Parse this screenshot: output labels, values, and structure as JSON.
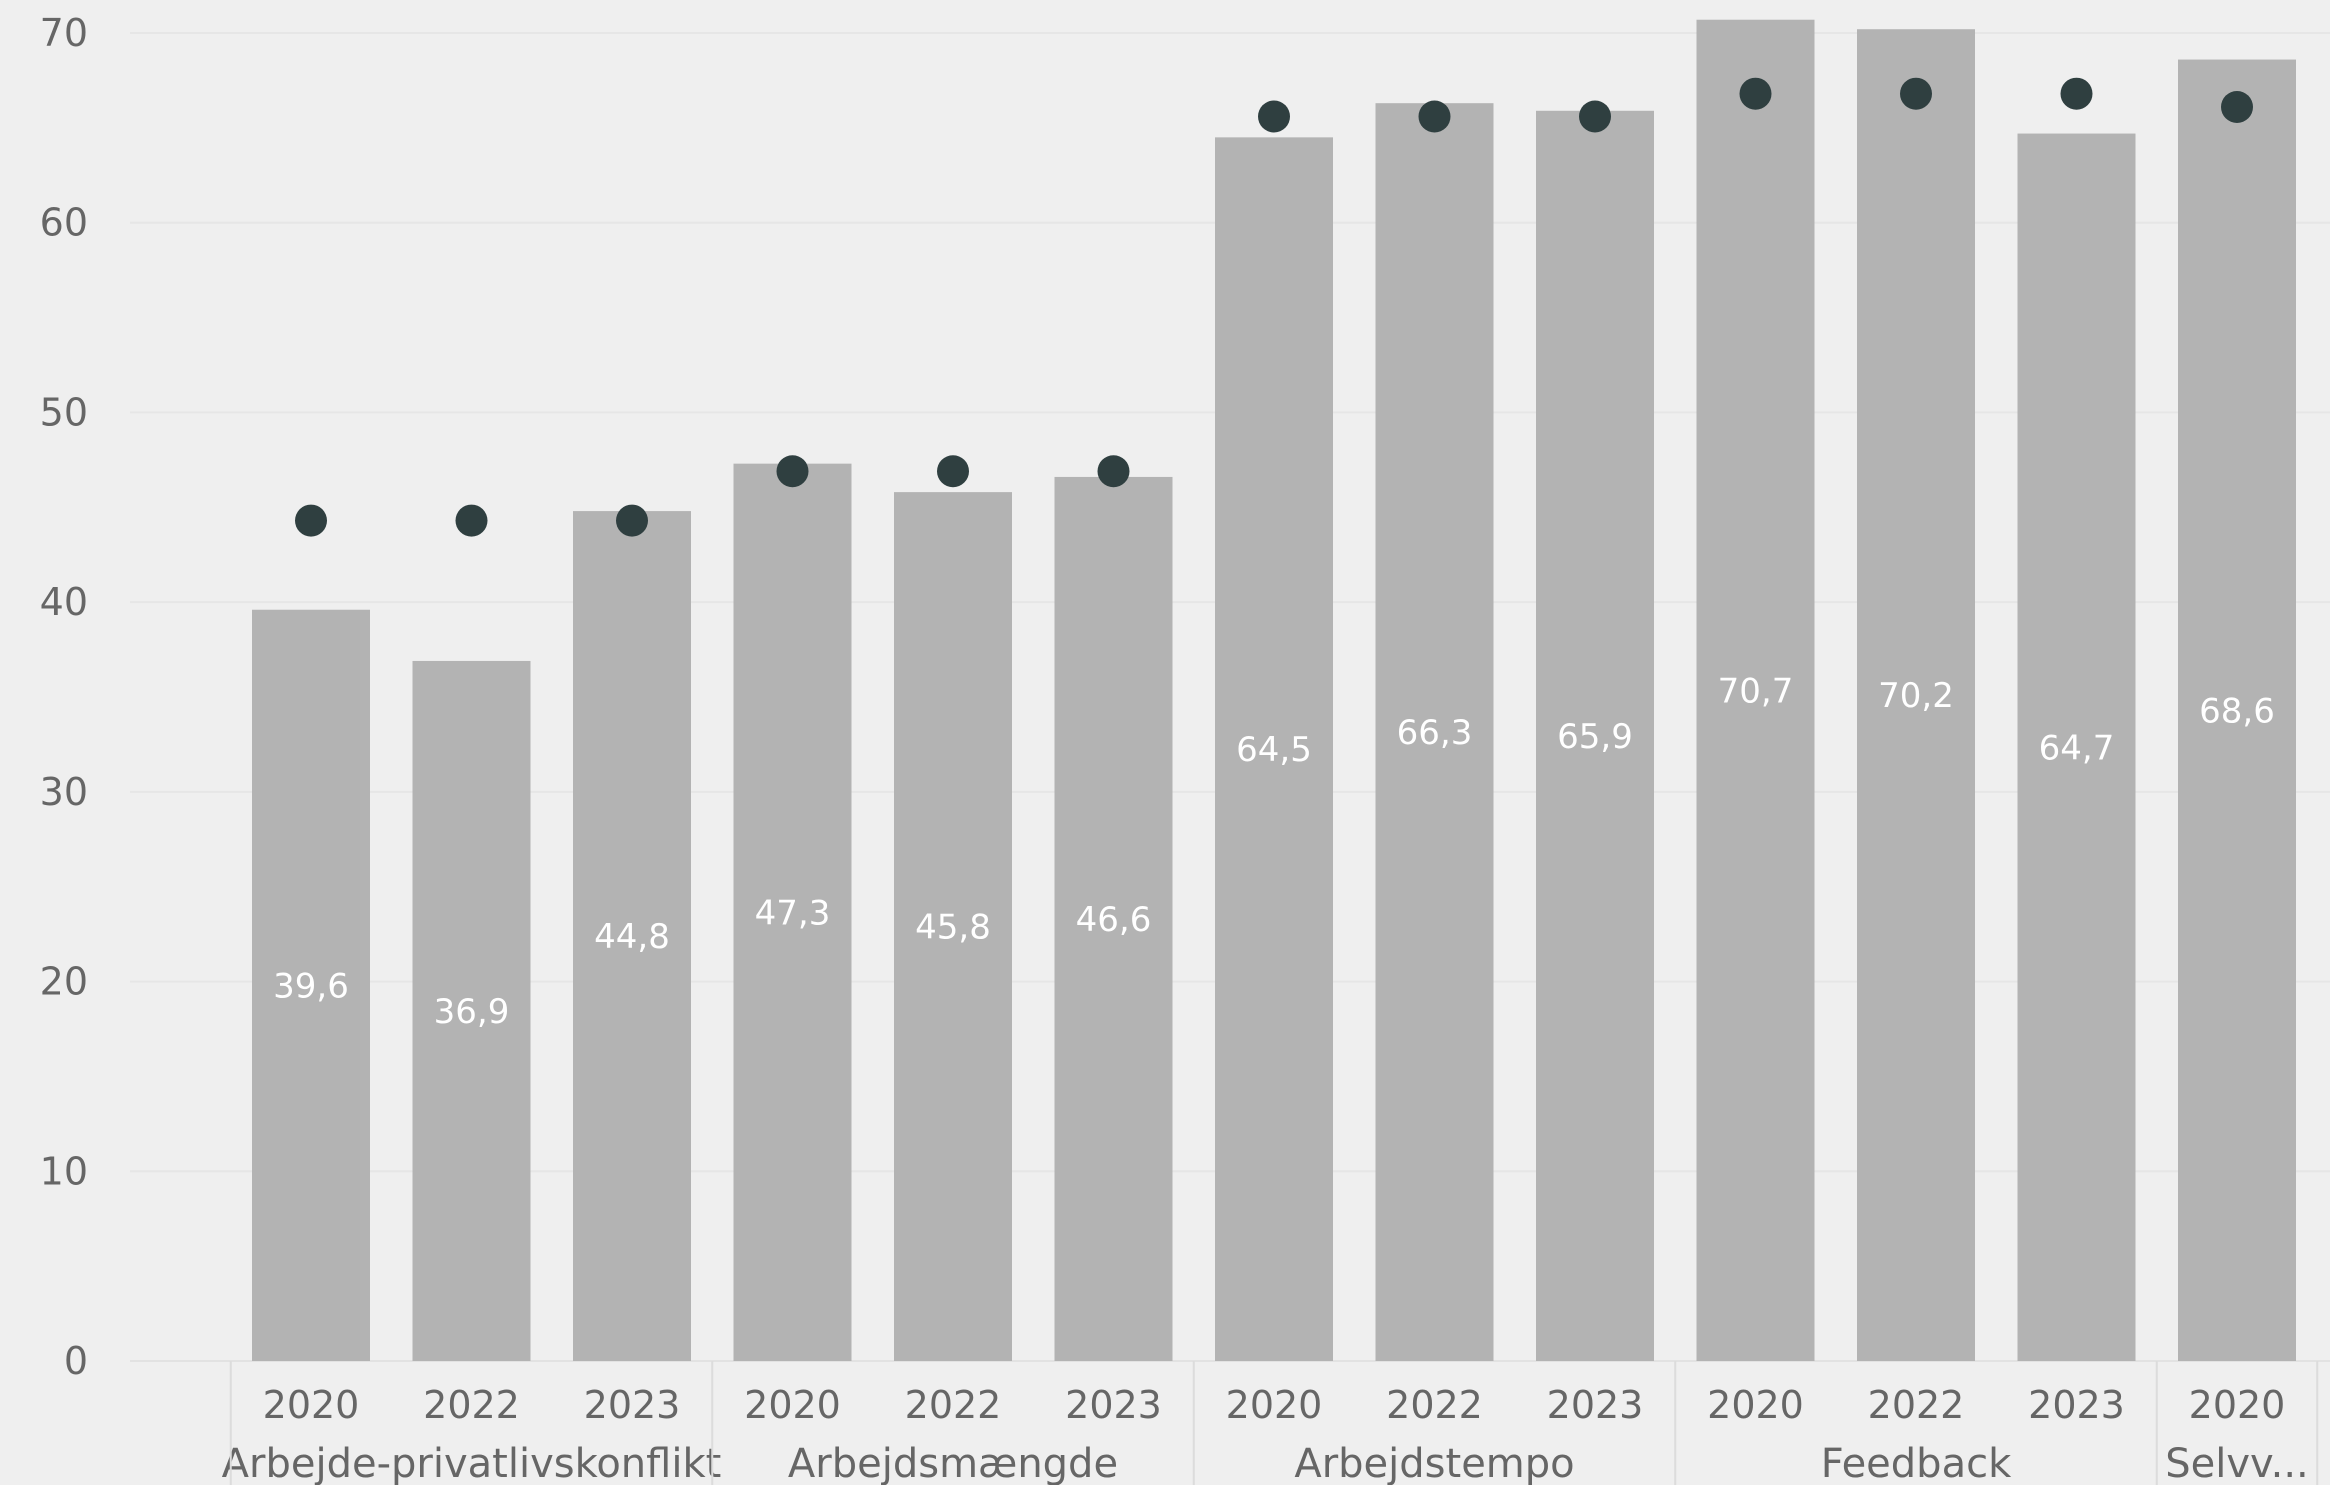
{
  "chart_data": {
    "type": "bar",
    "categories": [
      {
        "group": "Arbejde-privatlivskonflikt",
        "years": [
          "2020",
          "2022",
          "2023"
        ]
      },
      {
        "group": "Arbejdsmængde",
        "years": [
          "2020",
          "2022",
          "2023"
        ]
      },
      {
        "group": "Arbejdstempo",
        "years": [
          "2020",
          "2022",
          "2023"
        ]
      },
      {
        "group": "Feedback",
        "years": [
          "2020",
          "2022",
          "2023"
        ]
      },
      {
        "group": "Selvv...",
        "years": [
          "2020"
        ]
      }
    ],
    "bar_values": [
      39.6,
      36.9,
      44.8,
      47.3,
      45.8,
      46.6,
      64.5,
      66.3,
      65.9,
      70.7,
      70.2,
      64.7,
      68.6
    ],
    "bar_labels": [
      "39,6",
      "36,9",
      "44,8",
      "47,3",
      "45,8",
      "46,6",
      "64,5",
      "66,3",
      "65,9",
      "70,7",
      "70,2",
      "64,7",
      "68,6"
    ],
    "dot_values": [
      44.3,
      44.3,
      44.3,
      46.9,
      46.9,
      46.9,
      65.6,
      65.6,
      65.6,
      66.8,
      66.8,
      66.8,
      66.1
    ],
    "y_ticks": [
      "0",
      "10",
      "20",
      "30",
      "40",
      "50",
      "60",
      "70"
    ],
    "ylim": [
      0,
      70
    ],
    "grid": true,
    "bar_color": "#b3b3b3",
    "dot_color": "#2f3f40",
    "background": "#efefef"
  }
}
